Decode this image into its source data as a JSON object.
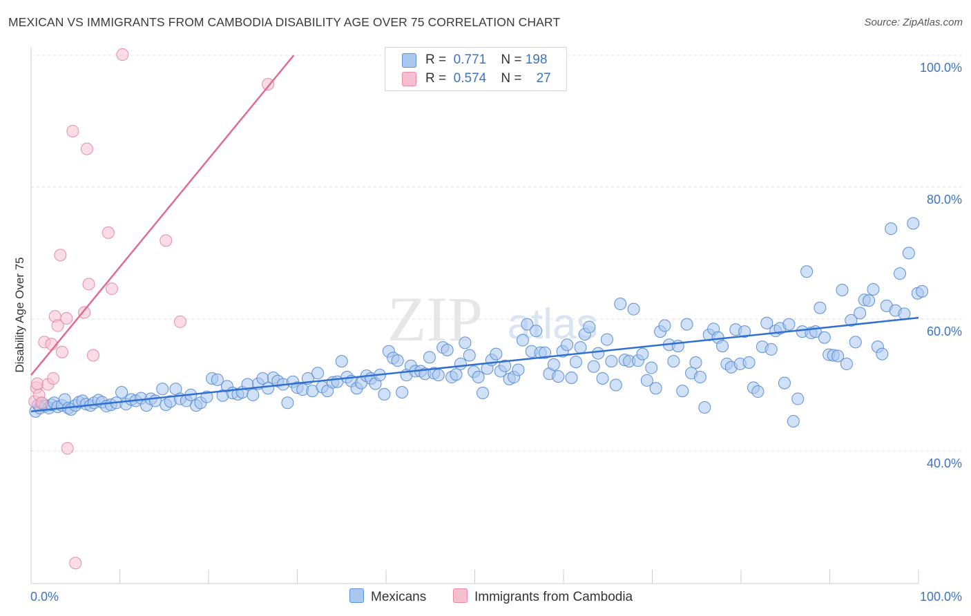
{
  "title": "MEXICAN VS IMMIGRANTS FROM CAMBODIA DISABILITY AGE OVER 75 CORRELATION CHART",
  "source": "Source: ZipAtlas.com",
  "watermark": {
    "zip": "ZIP",
    "atlas": "atlas"
  },
  "colors": {
    "blue_fill": "#a9c7ef",
    "blue_stroke": "#5b8fd6",
    "blue_line": "#2f6fd0",
    "pink_fill": "#f6bfd0",
    "pink_stroke": "#e88aa6",
    "pink_line": "#e06a92",
    "tick_text": "#3b73c4",
    "grid": "#dcdcdc"
  },
  "legend": {
    "rows": [
      {
        "r_label": "R =",
        "r_value": "0.771",
        "n_label": "N =",
        "n_value": "198"
      },
      {
        "r_label": "R =",
        "r_value": "0.574",
        "n_label": "N =",
        "n_value": "27"
      }
    ]
  },
  "bottom_legend": {
    "mexicans": "Mexicans",
    "cambodia": "Immigrants from Cambodia"
  },
  "chart_data": {
    "type": "scatter",
    "title": "MEXICAN VS IMMIGRANTS FROM CAMBODIA DISABILITY AGE OVER 75 CORRELATION CHART",
    "xlabel": "",
    "ylabel": "Disability Age Over 75",
    "xlim": [
      0,
      100
    ],
    "ylim": [
      20,
      102
    ],
    "x_tick_labels": [
      "0.0%",
      "100.0%"
    ],
    "y_ticks": [
      40,
      60,
      80,
      100
    ],
    "y_tick_labels": [
      "40.0%",
      "60.0%",
      "80.0%",
      "100.0%"
    ],
    "grid": true,
    "series": [
      {
        "name": "Mexicans",
        "color": "#a9c7ef",
        "trend": {
          "x": [
            0,
            100
          ],
          "y": [
            46.0,
            60.2
          ]
        },
        "points": [
          [
            0.5,
            46.0
          ],
          [
            0.8,
            47.0
          ],
          [
            1.0,
            46.5
          ],
          [
            1.3,
            47.2
          ],
          [
            1.6,
            46.8
          ],
          [
            2.0,
            46.5
          ],
          [
            2.3,
            47.0
          ],
          [
            2.6,
            47.3
          ],
          [
            3.0,
            46.7
          ],
          [
            3.5,
            46.9
          ],
          [
            3.8,
            47.8
          ],
          [
            4.2,
            46.5
          ],
          [
            4.5,
            46.3
          ],
          [
            5.0,
            46.9
          ],
          [
            5.4,
            47.4
          ],
          [
            5.8,
            47.6
          ],
          [
            6.2,
            47.1
          ],
          [
            6.7,
            46.9
          ],
          [
            7.1,
            47.3
          ],
          [
            7.6,
            47.7
          ],
          [
            8.0,
            47.4
          ],
          [
            8.5,
            46.8
          ],
          [
            9.0,
            47.0
          ],
          [
            9.6,
            47.3
          ],
          [
            10.2,
            48.9
          ],
          [
            10.7,
            47.1
          ],
          [
            11.3,
            47.8
          ],
          [
            11.8,
            47.6
          ],
          [
            12.4,
            48.0
          ],
          [
            13.0,
            46.9
          ],
          [
            13.5,
            47.9
          ],
          [
            14.0,
            47.6
          ],
          [
            14.8,
            49.4
          ],
          [
            15.2,
            47.0
          ],
          [
            15.7,
            47.5
          ],
          [
            16.3,
            49.4
          ],
          [
            16.8,
            47.9
          ],
          [
            17.5,
            47.6
          ],
          [
            18.0,
            48.5
          ],
          [
            18.6,
            46.9
          ],
          [
            19.1,
            47.3
          ],
          [
            19.8,
            48.2
          ],
          [
            20.4,
            51.0
          ],
          [
            21.0,
            50.8
          ],
          [
            21.6,
            48.4
          ],
          [
            22.1,
            49.8
          ],
          [
            22.7,
            48.8
          ],
          [
            23.3,
            48.6
          ],
          [
            23.8,
            48.9
          ],
          [
            24.4,
            50.1
          ],
          [
            25.0,
            48.5
          ],
          [
            25.6,
            50.2
          ],
          [
            26.1,
            51.0
          ],
          [
            26.7,
            49.5
          ],
          [
            27.3,
            51.1
          ],
          [
            27.8,
            50.6
          ],
          [
            28.4,
            50.1
          ],
          [
            28.9,
            47.3
          ],
          [
            29.5,
            50.5
          ],
          [
            30.0,
            49.6
          ],
          [
            30.6,
            49.3
          ],
          [
            31.2,
            51.0
          ],
          [
            31.7,
            49.1
          ],
          [
            32.3,
            51.8
          ],
          [
            32.8,
            49.7
          ],
          [
            33.4,
            49.1
          ],
          [
            34.0,
            50.4
          ],
          [
            34.5,
            50.5
          ],
          [
            35.0,
            53.6
          ],
          [
            35.6,
            51.2
          ],
          [
            36.1,
            50.6
          ],
          [
            36.7,
            49.5
          ],
          [
            37.2,
            50.3
          ],
          [
            37.8,
            51.4
          ],
          [
            38.3,
            51.0
          ],
          [
            38.8,
            50.2
          ],
          [
            39.3,
            51.5
          ],
          [
            39.8,
            48.6
          ],
          [
            40.3,
            55.1
          ],
          [
            40.8,
            54.1
          ],
          [
            41.3,
            53.7
          ],
          [
            41.8,
            48.9
          ],
          [
            42.3,
            51.5
          ],
          [
            42.8,
            52.9
          ],
          [
            43.3,
            52.1
          ],
          [
            43.9,
            52.1
          ],
          [
            44.4,
            51.7
          ],
          [
            44.9,
            54.2
          ],
          [
            45.4,
            51.8
          ],
          [
            45.9,
            51.5
          ],
          [
            46.4,
            55.7
          ],
          [
            46.9,
            55.3
          ],
          [
            47.4,
            51.2
          ],
          [
            47.9,
            51.6
          ],
          [
            48.4,
            53.2
          ],
          [
            48.9,
            56.4
          ],
          [
            49.4,
            54.5
          ],
          [
            49.9,
            52.0
          ],
          [
            50.4,
            51.2
          ],
          [
            50.9,
            48.8
          ],
          [
            51.4,
            52.5
          ],
          [
            51.9,
            53.8
          ],
          [
            52.4,
            54.7
          ],
          [
            52.9,
            52.1
          ],
          [
            53.4,
            52.9
          ],
          [
            53.9,
            50.9
          ],
          [
            54.4,
            51.2
          ],
          [
            54.9,
            52.3
          ],
          [
            55.4,
            56.8
          ],
          [
            55.9,
            59.2
          ],
          [
            56.4,
            55.1
          ],
          [
            56.9,
            58.2
          ],
          [
            57.4,
            54.9
          ],
          [
            57.9,
            54.9
          ],
          [
            58.4,
            51.7
          ],
          [
            58.9,
            53.1
          ],
          [
            59.4,
            51.3
          ],
          [
            59.9,
            55.1
          ],
          [
            60.4,
            56.1
          ],
          [
            60.9,
            51.1
          ],
          [
            61.4,
            53.5
          ],
          [
            61.9,
            55.7
          ],
          [
            62.4,
            57.7
          ],
          [
            62.9,
            58.8
          ],
          [
            63.4,
            52.8
          ],
          [
            63.9,
            54.8
          ],
          [
            64.4,
            51.0
          ],
          [
            64.9,
            56.9
          ],
          [
            65.4,
            53.6
          ],
          [
            65.9,
            50.0
          ],
          [
            66.4,
            62.3
          ],
          [
            66.9,
            53.8
          ],
          [
            67.4,
            53.6
          ],
          [
            67.9,
            61.5
          ],
          [
            68.4,
            53.7
          ],
          [
            68.9,
            54.7
          ],
          [
            69.4,
            50.7
          ],
          [
            69.9,
            52.6
          ],
          [
            70.4,
            49.5
          ],
          [
            70.9,
            58.1
          ],
          [
            71.4,
            59.0
          ],
          [
            71.9,
            56.1
          ],
          [
            72.4,
            53.6
          ],
          [
            72.9,
            55.9
          ],
          [
            73.4,
            49.1
          ],
          [
            73.9,
            59.2
          ],
          [
            74.4,
            51.8
          ],
          [
            74.9,
            53.4
          ],
          [
            75.4,
            51.2
          ],
          [
            75.9,
            46.6
          ],
          [
            76.4,
            57.6
          ],
          [
            76.9,
            58.5
          ],
          [
            77.4,
            57.2
          ],
          [
            77.9,
            55.9
          ],
          [
            78.4,
            53.2
          ],
          [
            78.9,
            52.7
          ],
          [
            79.4,
            58.4
          ],
          [
            79.9,
            53.2
          ],
          [
            80.4,
            58.1
          ],
          [
            80.9,
            53.4
          ],
          [
            81.4,
            49.6
          ],
          [
            81.9,
            49.0
          ],
          [
            82.4,
            55.8
          ],
          [
            82.9,
            59.4
          ],
          [
            83.4,
            55.4
          ],
          [
            83.9,
            58.2
          ],
          [
            84.4,
            58.6
          ],
          [
            84.9,
            50.3
          ],
          [
            85.4,
            59.2
          ],
          [
            85.9,
            44.5
          ],
          [
            86.4,
            47.9
          ],
          [
            86.9,
            58.1
          ],
          [
            87.4,
            67.2
          ],
          [
            87.9,
            57.9
          ],
          [
            88.4,
            58.1
          ],
          [
            88.9,
            61.7
          ],
          [
            89.4,
            57.2
          ],
          [
            89.9,
            54.6
          ],
          [
            90.4,
            54.5
          ],
          [
            90.9,
            54.4
          ],
          [
            91.4,
            64.4
          ],
          [
            91.9,
            53.2
          ],
          [
            92.4,
            59.8
          ],
          [
            92.9,
            56.5
          ],
          [
            93.4,
            60.9
          ],
          [
            93.9,
            62.9
          ],
          [
            94.4,
            62.8
          ],
          [
            94.9,
            64.5
          ],
          [
            95.4,
            55.8
          ],
          [
            95.9,
            54.7
          ],
          [
            96.4,
            62.0
          ],
          [
            96.9,
            73.7
          ],
          [
            97.4,
            61.3
          ],
          [
            97.9,
            66.9
          ],
          [
            98.4,
            60.8
          ],
          [
            98.9,
            70.0
          ],
          [
            99.4,
            74.5
          ],
          [
            99.9,
            63.9
          ],
          [
            100.4,
            64.2
          ]
        ]
      },
      {
        "name": "Immigrants from Cambodia",
        "color": "#f6bfd0",
        "trend": {
          "x": [
            0,
            29.6
          ],
          "y": [
            51.5,
            100.0
          ]
        },
        "points": [
          [
            0.4,
            47.5
          ],
          [
            0.6,
            49.6
          ],
          [
            0.7,
            50.2
          ],
          [
            0.9,
            48.5
          ],
          [
            1.2,
            47.3
          ],
          [
            1.5,
            56.5
          ],
          [
            1.9,
            50.1
          ],
          [
            2.3,
            56.2
          ],
          [
            2.5,
            51.0
          ],
          [
            2.7,
            60.4
          ],
          [
            3.0,
            59.0
          ],
          [
            3.3,
            69.7
          ],
          [
            3.5,
            55.0
          ],
          [
            4.0,
            60.1
          ],
          [
            4.1,
            40.4
          ],
          [
            4.7,
            88.5
          ],
          [
            6.0,
            61.0
          ],
          [
            6.3,
            85.8
          ],
          [
            6.5,
            65.3
          ],
          [
            7.0,
            54.5
          ],
          [
            8.7,
            73.1
          ],
          [
            9.1,
            64.6
          ],
          [
            10.3,
            100.1
          ],
          [
            15.2,
            71.9
          ],
          [
            16.8,
            59.6
          ],
          [
            26.7,
            95.6
          ],
          [
            5.0,
            23.0
          ]
        ]
      }
    ]
  }
}
